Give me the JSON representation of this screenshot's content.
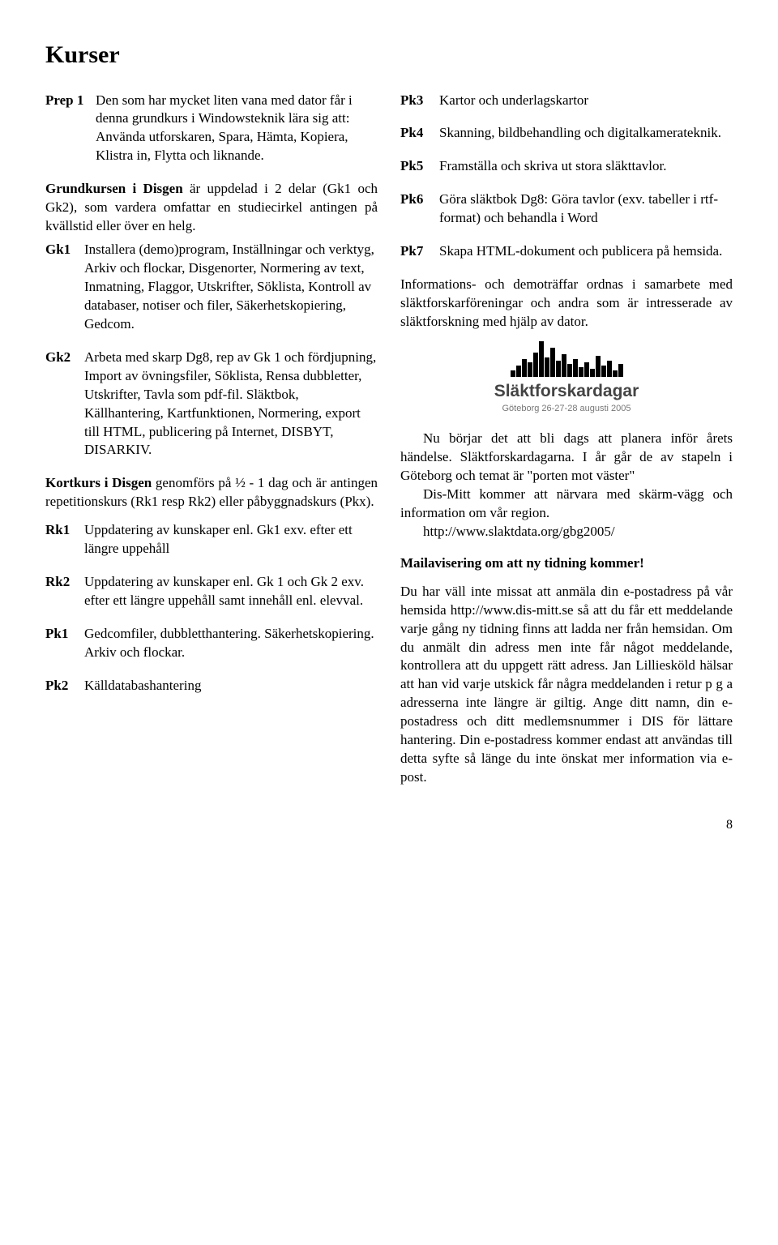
{
  "title": "Kurser",
  "left": {
    "prep1": {
      "label": "Prep 1",
      "text": "Den som har mycket liten vana med dator får i denna grundkurs i Windowsteknik lära sig att: Använda utforskaren, Spara, Hämta, Kopiera, Klistra in, Flytta och liknande."
    },
    "grundkursen": {
      "bold": "Grundkursen i Disgen",
      "rest": " är uppdelad i 2 delar (Gk1 och Gk2), som vardera omfattar en studiecirkel antingen på kvällstid eller över en helg."
    },
    "gk1": {
      "label": "Gk1",
      "text": "Installera (demo)program, Inställningar och verktyg, Arkiv och flockar, Disgenorter, Normering av text, Inmatning, Flaggor, Utskrifter, Söklista, Kontroll av databaser, notiser och filer, Säkerhetskopiering, Gedcom."
    },
    "gk2": {
      "label": "Gk2",
      "text": "Arbeta med skarp Dg8, rep av Gk 1 och fördjupning, Import av övningsfiler, Söklista, Rensa dubbletter, Utskrifter, Tavla som pdf-fil. Släktbok, Källhantering, Kartfunktionen, Normering, export till HTML, publicering på Internet, DISBYT, DISARKIV."
    },
    "kortkurs": {
      "bold": "Kortkurs i Disgen",
      "rest": " genomförs på ½ - 1 dag och är antingen repetitionskurs (Rk1 resp Rk2) eller påbyggnadskurs (Pkx)."
    },
    "rk1": {
      "label": "Rk1",
      "text": "Uppdatering av kunskaper enl. Gk1 exv. efter ett längre uppehåll"
    },
    "rk2": {
      "label": "Rk2",
      "text": "Uppdatering av kunskaper enl. Gk 1 och Gk 2 exv. efter ett längre uppehåll samt  innehåll enl. elevval."
    },
    "pk1": {
      "label": "Pk1",
      "text": "Gedcomfiler, dubbletthantering. Säkerhetskopiering. Arkiv och flockar."
    },
    "pk2": {
      "label": "Pk2",
      "text": "Källdatabashantering"
    }
  },
  "right": {
    "pk3": {
      "label": "Pk3",
      "text": "Kartor och underlagskartor"
    },
    "pk4": {
      "label": "Pk4",
      "text": "Skanning, bildbehandling och digitalkamerateknik."
    },
    "pk5": {
      "label": "Pk5",
      "text": "Framställa och skriva ut stora släkttavlor."
    },
    "pk6": {
      "label": "Pk6",
      "text": "Göra släktbok Dg8: Göra tavlor (exv. tabeller i rtf-format) och behandla i Word"
    },
    "pk7": {
      "label": "Pk7",
      "text": "Skapa HTML-dokument och publicera på hemsida."
    },
    "info": "Informations- och demoträffar ordnas i samarbete med släktforskarföreningar och andra som är intresserade av släktforskning med hjälp av dator.",
    "logo_title": "Släktforskardagar",
    "logo_sub": "Göteborg 26-27-28 augusti 2005",
    "para1": "Nu börjar det att bli dags att planera inför årets händelse. Släktforskardagarna. I år går de av stapeln i Göteborg och temat är \"porten mot väster\"",
    "para2": "Dis-Mitt kommer att närvara med skärm-vägg och information om vår region.",
    "para3": "http://www.slaktdata.org/gbg2005/",
    "mail_head": "Mailavisering om att ny tidning kommer!",
    "mail_body": "Du har väll inte missat att anmäla din e-postadress på vår hemsida http://www.dis-mitt.se så att du får ett meddelande varje gång ny tidning finns att ladda ner från hemsidan. Om du anmält din adress men inte får något meddelande, kontrollera att du uppgett rätt adress. Jan Lilliesköld hälsar att han vid varje utskick får några meddelanden i retur p g a adresserna inte längre är giltig. Ange ditt namn, din e-postadress och ditt medlemsnummer i DIS för lättare hantering. Din e-postadress kommer endast att användas till detta syfte så länge du inte önskat mer information via e-post."
  },
  "pagenum": "8",
  "skyline_heights": [
    8,
    14,
    22,
    18,
    30,
    44,
    24,
    36,
    20,
    28,
    16,
    22,
    12,
    18,
    10,
    26,
    14,
    20,
    8,
    16
  ]
}
